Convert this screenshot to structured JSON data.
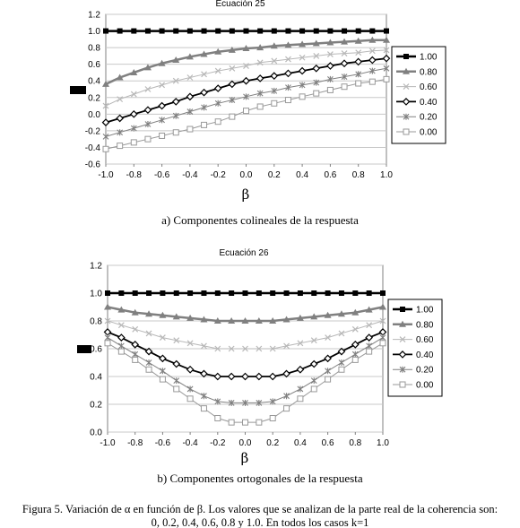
{
  "chart_data": [
    {
      "type": "line",
      "title": "Ecuación 25",
      "xlabel": "β",
      "ylabel": "",
      "xlim": [
        -1.0,
        1.0
      ],
      "ylim": [
        -0.6,
        1.2
      ],
      "x_ticks": [
        "-1.0",
        "-0.8",
        "-0.6",
        "-0.4",
        "-0.2",
        "0.0",
        "0.2",
        "0.4",
        "0.6",
        "0.8",
        "1.0"
      ],
      "y_ticks": [
        "1.2",
        "1.0",
        "0.8",
        "0.6",
        "0.4",
        "0.2",
        "0.0",
        "-0.2",
        "-0.4",
        "-0.6"
      ],
      "x": [
        -1.0,
        -0.9,
        -0.8,
        -0.7,
        -0.6,
        -0.5,
        -0.4,
        -0.3,
        -0.2,
        -0.1,
        0.0,
        0.1,
        0.2,
        0.3,
        0.4,
        0.5,
        0.6,
        0.7,
        0.8,
        0.9,
        1.0
      ],
      "caption": "a) Componentes colineales de la respuesta",
      "legend_position": "right",
      "grid": "horizontal",
      "series": [
        {
          "name": "1.00",
          "marker": "square",
          "color": "#000000",
          "width": 2.5,
          "values": [
            1.0,
            1.0,
            1.0,
            1.0,
            1.0,
            1.0,
            1.0,
            1.0,
            1.0,
            1.0,
            1.0,
            1.0,
            1.0,
            1.0,
            1.0,
            1.0,
            1.0,
            1.0,
            1.0,
            1.0,
            1.0
          ]
        },
        {
          "name": "0.80",
          "marker": "triangle",
          "color": "#808080",
          "width": 2.5,
          "values": [
            0.36,
            0.44,
            0.5,
            0.56,
            0.61,
            0.65,
            0.69,
            0.72,
            0.75,
            0.77,
            0.79,
            0.8,
            0.82,
            0.83,
            0.84,
            0.85,
            0.86,
            0.87,
            0.88,
            0.89,
            0.89
          ]
        },
        {
          "name": "0.60",
          "marker": "x",
          "color": "#b8b8b8",
          "width": 1,
          "values": [
            0.1,
            0.18,
            0.24,
            0.3,
            0.35,
            0.4,
            0.44,
            0.48,
            0.52,
            0.55,
            0.58,
            0.62,
            0.64,
            0.66,
            0.68,
            0.7,
            0.72,
            0.73,
            0.74,
            0.76,
            0.77
          ]
        },
        {
          "name": "0.40",
          "marker": "diamond",
          "color": "#000000",
          "width": 1.8,
          "values": [
            -0.1,
            -0.05,
            0.0,
            0.05,
            0.1,
            0.15,
            0.21,
            0.26,
            0.31,
            0.36,
            0.4,
            0.43,
            0.46,
            0.49,
            0.52,
            0.55,
            0.58,
            0.61,
            0.63,
            0.65,
            0.67
          ]
        },
        {
          "name": "0.20",
          "marker": "star",
          "color": "#808080",
          "width": 1,
          "values": [
            -0.27,
            -0.22,
            -0.17,
            -0.12,
            -0.07,
            -0.02,
            0.03,
            0.08,
            0.13,
            0.17,
            0.21,
            0.25,
            0.28,
            0.32,
            0.35,
            0.38,
            0.42,
            0.45,
            0.48,
            0.52,
            0.55
          ]
        },
        {
          "name": "0.00",
          "marker": "open-square",
          "color": "#999999",
          "width": 1,
          "values": [
            -0.42,
            -0.38,
            -0.34,
            -0.3,
            -0.26,
            -0.22,
            -0.18,
            -0.13,
            -0.09,
            -0.03,
            0.04,
            0.09,
            0.13,
            0.17,
            0.21,
            0.25,
            0.29,
            0.33,
            0.37,
            0.39,
            0.42
          ]
        }
      ]
    },
    {
      "type": "line",
      "title": "Ecuación 26",
      "xlabel": "β",
      "ylabel": "",
      "xlim": [
        -1.0,
        1.0
      ],
      "ylim": [
        0.0,
        1.2
      ],
      "x_ticks": [
        "-1.0",
        "-0.8",
        "-0.6",
        "-0.4",
        "-0.2",
        "0.0",
        "0.2",
        "0.4",
        "0.6",
        "0.8",
        "1.0"
      ],
      "y_ticks": [
        "1.2",
        "1.0",
        "0.8",
        "0.6",
        "0.4",
        "0.2",
        "0.0"
      ],
      "x": [
        -1.0,
        -0.9,
        -0.8,
        -0.7,
        -0.6,
        -0.5,
        -0.4,
        -0.3,
        -0.2,
        -0.1,
        0.0,
        0.1,
        0.2,
        0.3,
        0.4,
        0.5,
        0.6,
        0.7,
        0.8,
        0.9,
        1.0
      ],
      "caption": "b) Componentes ortogonales de la respuesta",
      "legend_position": "right",
      "grid": "horizontal",
      "series": [
        {
          "name": "1.00",
          "marker": "square",
          "color": "#000000",
          "width": 2.5,
          "values": [
            1.0,
            1.0,
            1.0,
            1.0,
            1.0,
            1.0,
            1.0,
            1.0,
            1.0,
            1.0,
            1.0,
            1.0,
            1.0,
            1.0,
            1.0,
            1.0,
            1.0,
            1.0,
            1.0,
            1.0,
            1.0
          ]
        },
        {
          "name": "0.80",
          "marker": "triangle",
          "color": "#808080",
          "width": 2.5,
          "values": [
            0.9,
            0.88,
            0.86,
            0.85,
            0.84,
            0.83,
            0.82,
            0.81,
            0.8,
            0.8,
            0.8,
            0.8,
            0.8,
            0.81,
            0.82,
            0.83,
            0.84,
            0.85,
            0.86,
            0.88,
            0.9
          ]
        },
        {
          "name": "0.60",
          "marker": "x",
          "color": "#b8b8b8",
          "width": 1,
          "values": [
            0.8,
            0.77,
            0.74,
            0.71,
            0.68,
            0.66,
            0.64,
            0.62,
            0.6,
            0.6,
            0.6,
            0.6,
            0.6,
            0.62,
            0.64,
            0.66,
            0.68,
            0.71,
            0.74,
            0.77,
            0.8
          ]
        },
        {
          "name": "0.40",
          "marker": "diamond",
          "color": "#000000",
          "width": 1.8,
          "values": [
            0.72,
            0.68,
            0.63,
            0.58,
            0.53,
            0.49,
            0.45,
            0.42,
            0.4,
            0.4,
            0.4,
            0.4,
            0.4,
            0.42,
            0.45,
            0.49,
            0.53,
            0.58,
            0.63,
            0.68,
            0.72
          ]
        },
        {
          "name": "0.20",
          "marker": "star",
          "color": "#808080",
          "width": 1,
          "values": [
            0.68,
            0.62,
            0.56,
            0.5,
            0.44,
            0.37,
            0.31,
            0.26,
            0.22,
            0.21,
            0.21,
            0.21,
            0.22,
            0.26,
            0.31,
            0.37,
            0.44,
            0.5,
            0.56,
            0.62,
            0.68
          ]
        },
        {
          "name": "0.00",
          "marker": "open-square",
          "color": "#999999",
          "width": 1,
          "values": [
            0.64,
            0.58,
            0.52,
            0.45,
            0.38,
            0.31,
            0.24,
            0.17,
            0.1,
            0.07,
            0.07,
            0.07,
            0.1,
            0.17,
            0.24,
            0.31,
            0.38,
            0.45,
            0.52,
            0.58,
            0.64
          ]
        }
      ]
    }
  ],
  "figure_caption": {
    "line1": "Figura 5. Variación de α en función de β. Los valores que se analizan de la parte real de la coherencia son:",
    "line2": "0, 0.2, 0.4, 0.6, 0.8 y 1.0. En todos los casos k=1"
  }
}
